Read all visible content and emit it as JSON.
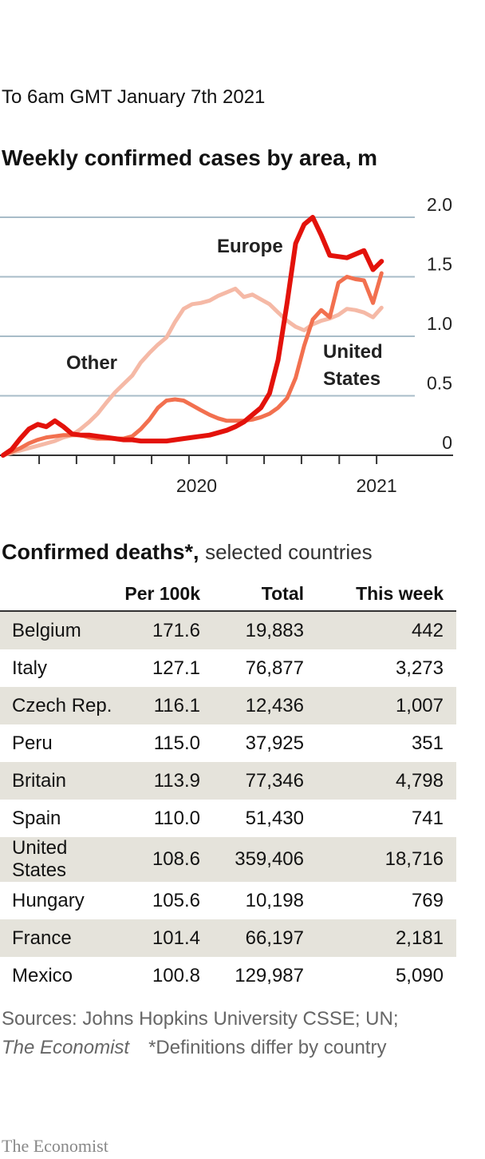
{
  "header": {
    "note": "To 6am GMT January 7th 2021"
  },
  "chart_data": {
    "type": "line",
    "title": "Weekly confirmed cases by area, m",
    "x": [
      2020.17,
      2020.189,
      2020.208,
      2020.227,
      2020.247,
      2020.266,
      2020.285,
      2020.304,
      2020.323,
      2020.342,
      2020.361,
      2020.38,
      2020.399,
      2020.419,
      2020.438,
      2020.457,
      2020.476,
      2020.495,
      2020.514,
      2020.533,
      2020.552,
      2020.571,
      2020.59,
      2020.609,
      2020.629,
      2020.648,
      2020.667,
      2020.686,
      2020.705,
      2020.724,
      2020.743,
      2020.762,
      2020.781,
      2020.801,
      2020.82,
      2020.839,
      2020.858,
      2020.877,
      2020.896,
      2020.915,
      2020.934,
      2020.953,
      2020.972,
      2020.992,
      2021.011
    ],
    "series": [
      {
        "name": "Other",
        "color": "#f5b9a6",
        "values": [
          0.0,
          0.02,
          0.04,
          0.06,
          0.08,
          0.1,
          0.12,
          0.15,
          0.17,
          0.22,
          0.28,
          0.35,
          0.44,
          0.53,
          0.6,
          0.67,
          0.78,
          0.86,
          0.93,
          0.99,
          1.12,
          1.23,
          1.27,
          1.28,
          1.3,
          1.34,
          1.37,
          1.4,
          1.33,
          1.35,
          1.31,
          1.27,
          1.2,
          1.13,
          1.08,
          1.05,
          1.1,
          1.13,
          1.15,
          1.18,
          1.23,
          1.22,
          1.2,
          1.16,
          1.24
        ]
      },
      {
        "name": "United States",
        "color": "#f2704f",
        "values": [
          0.0,
          0.03,
          0.06,
          0.1,
          0.13,
          0.15,
          0.16,
          0.17,
          0.17,
          0.17,
          0.15,
          0.14,
          0.14,
          0.14,
          0.14,
          0.16,
          0.22,
          0.3,
          0.4,
          0.46,
          0.47,
          0.46,
          0.42,
          0.38,
          0.34,
          0.31,
          0.29,
          0.29,
          0.29,
          0.3,
          0.32,
          0.35,
          0.4,
          0.48,
          0.65,
          0.92,
          1.14,
          1.22,
          1.16,
          1.45,
          1.5,
          1.48,
          1.47,
          1.28,
          1.53
        ]
      },
      {
        "name": "Europe",
        "color": "#e3120b",
        "values": [
          0.0,
          0.05,
          0.14,
          0.22,
          0.26,
          0.24,
          0.29,
          0.24,
          0.18,
          0.17,
          0.17,
          0.16,
          0.15,
          0.14,
          0.13,
          0.13,
          0.12,
          0.12,
          0.12,
          0.12,
          0.13,
          0.14,
          0.15,
          0.16,
          0.17,
          0.19,
          0.21,
          0.24,
          0.28,
          0.34,
          0.4,
          0.52,
          0.8,
          1.28,
          1.78,
          1.94,
          2.0,
          1.85,
          1.68,
          1.67,
          1.66,
          1.69,
          1.72,
          1.56,
          1.63
        ]
      }
    ],
    "xlim": [
      2020.163,
      2021.17
    ],
    "xticks": [
      {
        "value": 2020.6,
        "label": "2020"
      },
      2021
    ],
    "minor_xticks": [
      2020.25,
      2020.333,
      2020.417,
      2020.5,
      2020.583,
      2020.667,
      2020.75,
      2020.833,
      2020.917,
      2021
    ],
    "ylim": [
      0,
      2
    ],
    "yticks": [
      0,
      0.5,
      {
        "value": 1,
        "label": "1.0"
      },
      1.5,
      {
        "value": 2,
        "label": "2.0"
      }
    ],
    "grid": true
  },
  "table": {
    "title": "Confirmed deaths*,",
    "subtitle": "selected countries",
    "columns": [
      "Per 100k",
      "Total",
      "This week"
    ],
    "rows": [
      [
        "Belgium",
        "171.6",
        "19,883",
        "442"
      ],
      [
        "Italy",
        "127.1",
        "76,877",
        "3,273"
      ],
      [
        "Czech Rep.",
        "116.1",
        "12,436",
        "1,007"
      ],
      [
        "Peru",
        "115.0",
        "37,925",
        "351"
      ],
      [
        "Britain",
        "113.9",
        "77,346",
        "4,798"
      ],
      [
        "Spain",
        "110.0",
        "51,430",
        "741"
      ],
      [
        "United States",
        "108.6",
        "359,406",
        "18,716"
      ],
      [
        "Hungary",
        "105.6",
        "10,198",
        "769"
      ],
      [
        "France",
        "101.4",
        "66,197",
        "2,181"
      ],
      [
        "Mexico",
        "100.8",
        "129,987",
        "5,090"
      ]
    ]
  },
  "sources": {
    "text": "Sources: Johns Hopkins University CSSE; UN;",
    "publication": "The Economist",
    "footnote": "*Definitions differ by country"
  },
  "footer": {
    "brand": "The Economist"
  }
}
